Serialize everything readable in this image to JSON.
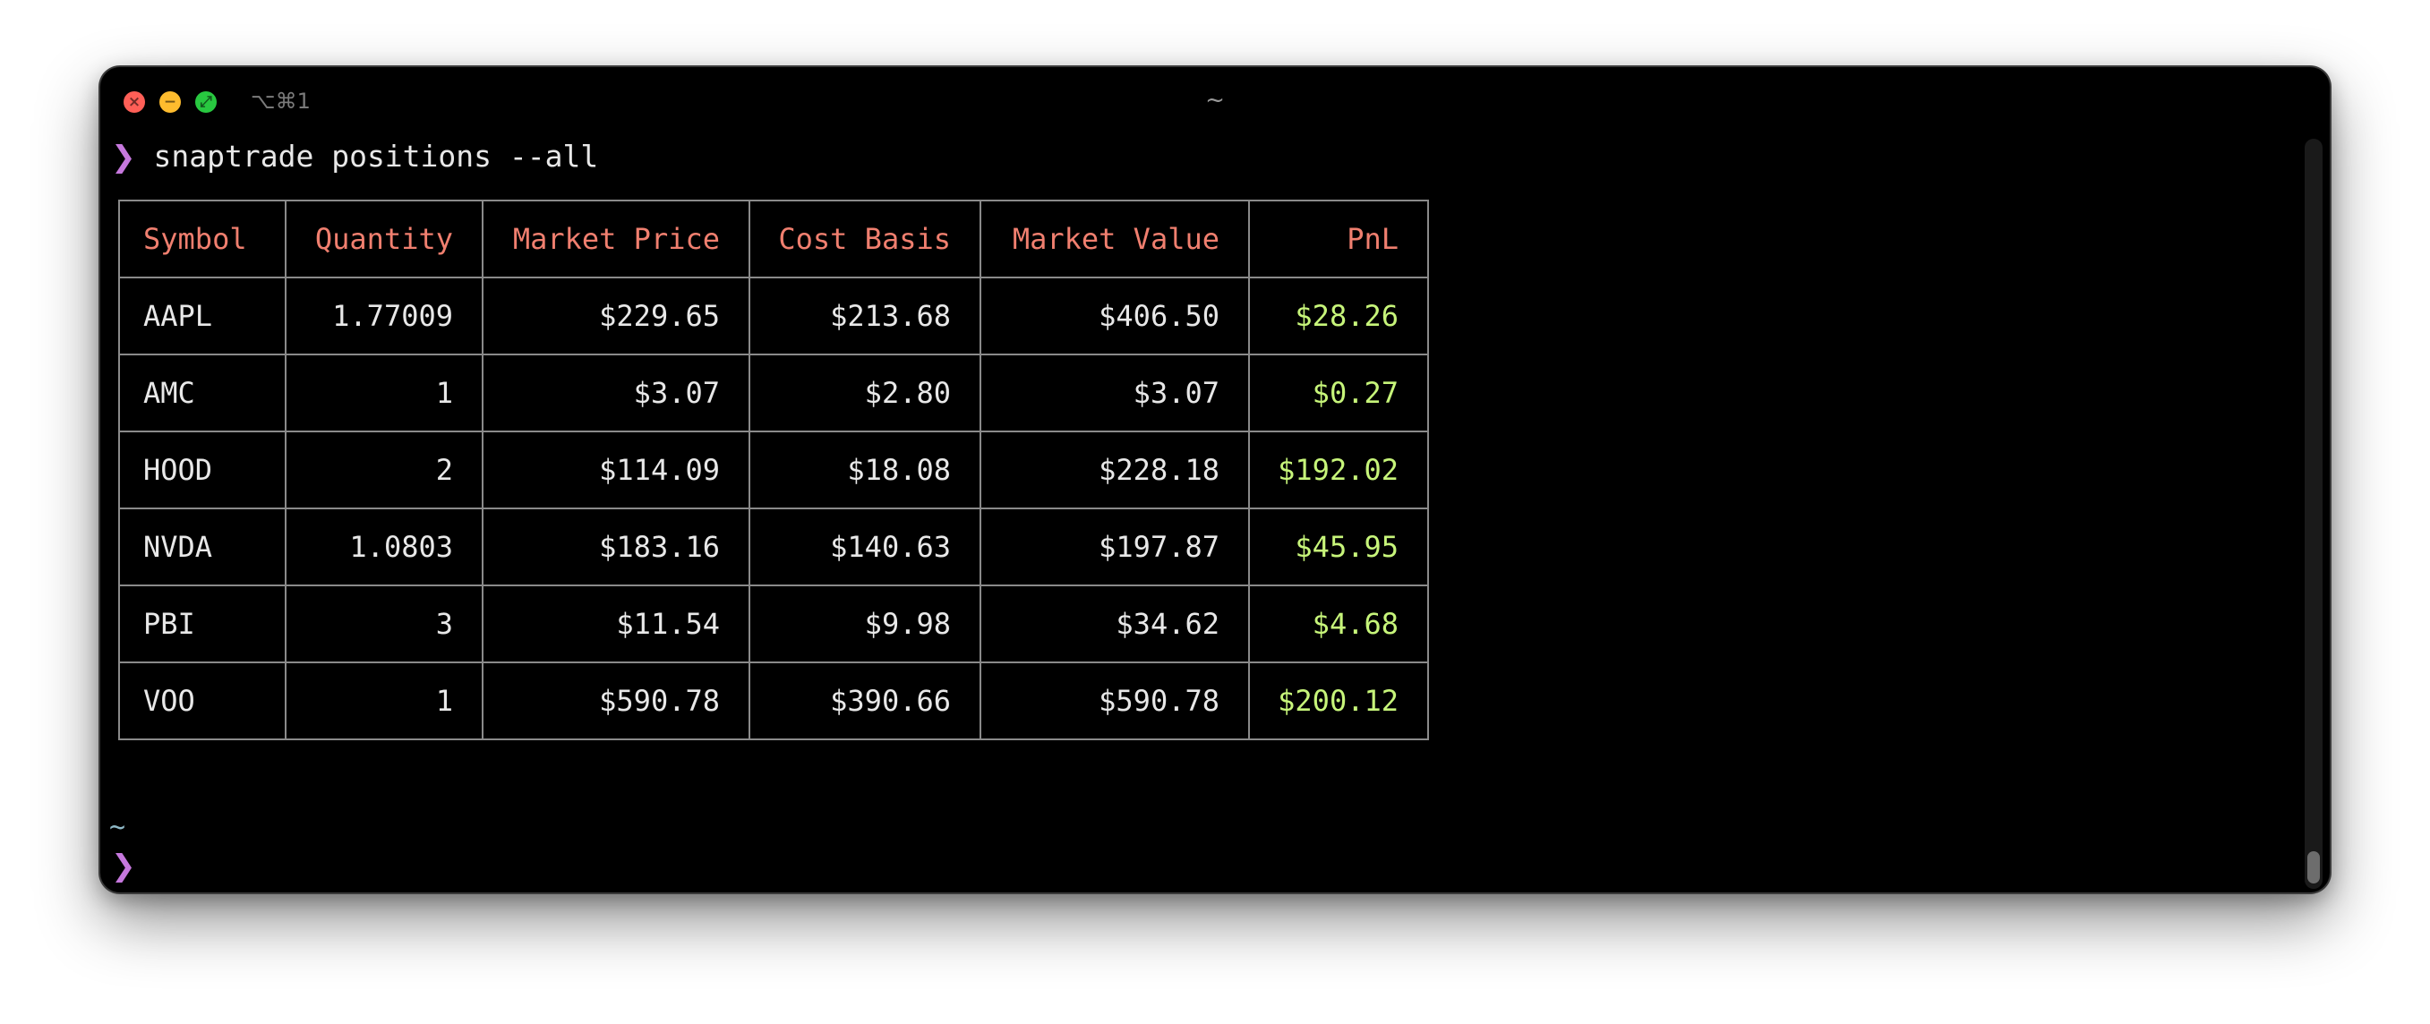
{
  "window": {
    "title": "~",
    "shortcut": "⌥⌘1",
    "controls": {
      "close_glyph": "×",
      "minimize_glyph": "−",
      "zoom_glyph": "⤢"
    }
  },
  "terminal": {
    "prompt_symbol": "❯",
    "command": "snaptrade positions --all",
    "cwd": "~"
  },
  "table": {
    "headers": [
      "Symbol",
      "Quantity",
      "Market Price",
      "Cost Basis",
      "Market Value",
      "PnL"
    ],
    "rows": [
      [
        "AAPL",
        "1.77009",
        "$229.65",
        "$213.68",
        "$406.50",
        "$28.26"
      ],
      [
        "AMC",
        "1",
        "$3.07",
        "$2.80",
        "$3.07",
        "$0.27"
      ],
      [
        "HOOD",
        "2",
        "$114.09",
        "$18.08",
        "$228.18",
        "$192.02"
      ],
      [
        "NVDA",
        "1.0803",
        "$183.16",
        "$140.63",
        "$197.87",
        "$45.95"
      ],
      [
        "PBI",
        "3",
        "$11.54",
        "$9.98",
        "$34.62",
        "$4.68"
      ],
      [
        "VOO",
        "1",
        "$590.78",
        "$390.66",
        "$590.78",
        "$200.12"
      ]
    ]
  },
  "colors": {
    "header_text": "#f07f6f",
    "pnl_positive": "#c7f57a",
    "prompt_symbol": "#c678dd",
    "background": "#000000"
  },
  "icons": [
    "close-icon",
    "minimize-icon",
    "zoom-icon"
  ]
}
